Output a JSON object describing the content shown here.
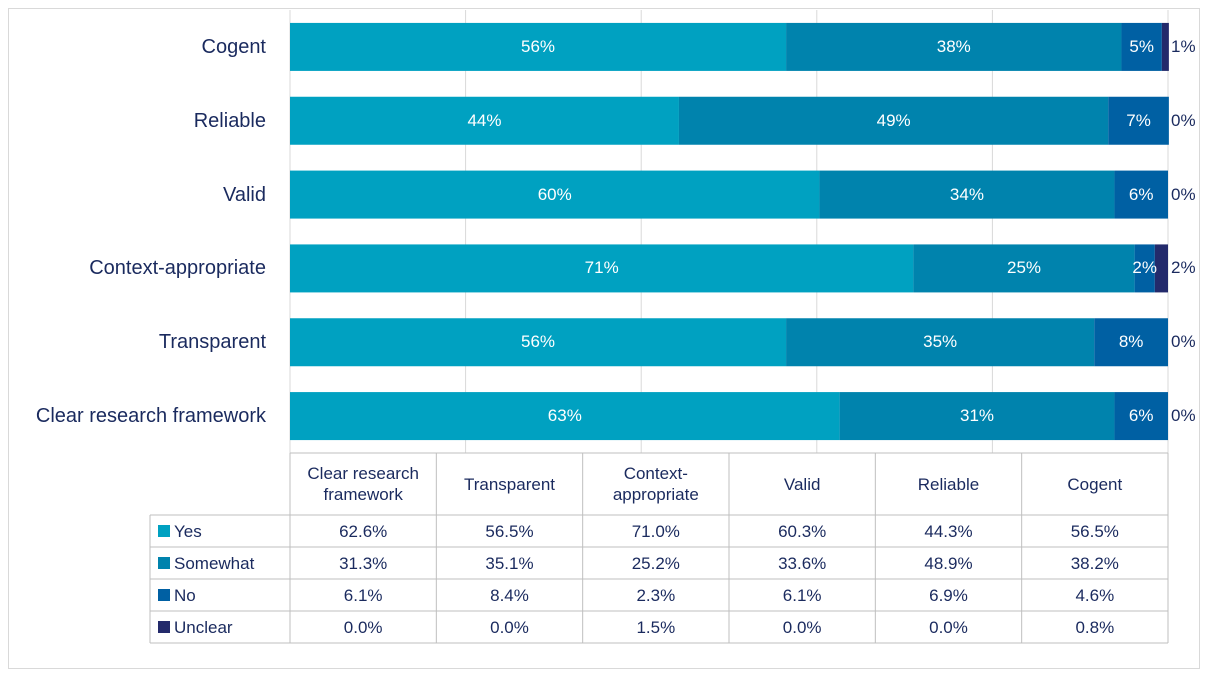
{
  "chart_data": {
    "type": "stacked_bar_h",
    "categories": [
      "Clear research framework",
      "Transparent",
      "Context-appropriate",
      "Valid",
      "Reliable",
      "Cogent"
    ],
    "xlim": [
      0,
      100
    ],
    "xticks": [
      0,
      20,
      40,
      60,
      80,
      100
    ],
    "grid": true,
    "series": [
      {
        "name": "Yes",
        "color": "#00a1c1",
        "values": [
          62.6,
          56.5,
          71.0,
          60.3,
          44.3,
          56.5
        ],
        "value_labels": [
          "63%",
          "56%",
          "71%",
          "60%",
          "44%",
          "56%"
        ],
        "table_labels": [
          "62.6%",
          "56.5%",
          "71.0%",
          "60.3%",
          "44.3%",
          "56.5%"
        ]
      },
      {
        "name": "Somewhat",
        "color": "#0083ad",
        "values": [
          31.3,
          35.1,
          25.2,
          33.6,
          48.9,
          38.2
        ],
        "value_labels": [
          "31%",
          "35%",
          "25%",
          "34%",
          "49%",
          "38%"
        ],
        "table_labels": [
          "31.3%",
          "35.1%",
          "25.2%",
          "33.6%",
          "48.9%",
          "38.2%"
        ]
      },
      {
        "name": "No",
        "color": "#0060a3",
        "values": [
          6.1,
          8.4,
          2.3,
          6.1,
          6.9,
          4.6
        ],
        "value_labels": [
          "6%",
          "8%",
          "2%",
          "6%",
          "7%",
          "5%"
        ],
        "table_labels": [
          "6.1%",
          "8.4%",
          "2.3%",
          "6.1%",
          "6.9%",
          "4.6%"
        ]
      },
      {
        "name": "Unclear",
        "color": "#232a6b",
        "values": [
          0.0,
          0.0,
          1.5,
          0.0,
          0.0,
          0.8
        ],
        "value_labels": [
          "0%",
          "0%",
          "2%",
          "0%",
          "0%",
          "1%"
        ],
        "table_labels": [
          "0.0%",
          "0.0%",
          "1.5%",
          "0.0%",
          "0.0%",
          "0.8%"
        ]
      }
    ]
  }
}
